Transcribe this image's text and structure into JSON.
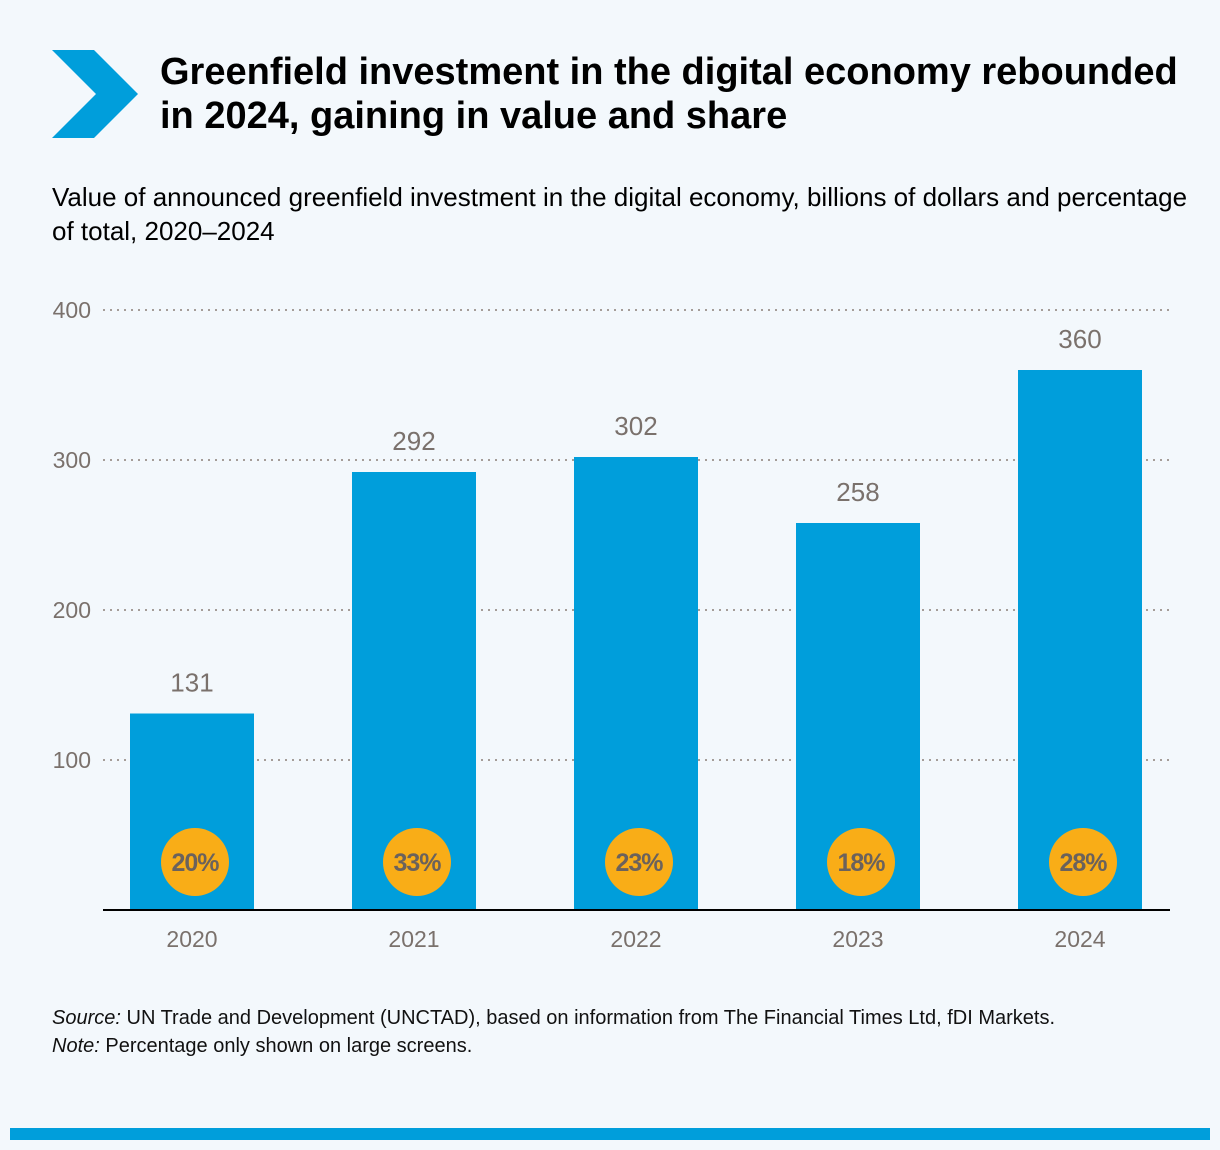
{
  "header": {
    "title": "Greenfield investment in the digital economy rebounded in 2024, gaining in value and share",
    "subtitle": "Value of announced greenfield investment in the digital economy, billions of dollars and percentage of total, 2020–2024",
    "icon": "chevron-right-icon"
  },
  "colors": {
    "bar": "#009edb",
    "badge": "#f9ad17",
    "accent": "#009edb",
    "background": "#f3f8fc"
  },
  "chart_data": {
    "type": "bar",
    "title": "Value of announced greenfield investment in the digital economy, billions of dollars and percentage of total, 2020–2024",
    "xlabel": "",
    "ylabel": "",
    "categories": [
      "2020",
      "2021",
      "2022",
      "2023",
      "2024"
    ],
    "values": [
      131,
      292,
      302,
      258,
      360
    ],
    "value_labels": [
      "131",
      "292",
      "302",
      "258",
      "360"
    ],
    "share_labels": [
      "20%",
      "33%",
      "23%",
      "18%",
      "28%"
    ],
    "shares_percent": [
      20,
      33,
      23,
      18,
      28
    ],
    "series": [
      {
        "name": "Value (billions of dollars)",
        "values": [
          131,
          292,
          302,
          258,
          360
        ]
      },
      {
        "name": "Percentage of total",
        "values": [
          20,
          33,
          23,
          18,
          28
        ]
      }
    ],
    "ylim": [
      0,
      400
    ],
    "yticks": [
      100,
      200,
      300,
      400
    ],
    "ytick_labels": [
      "100",
      "200",
      "300",
      "400"
    ],
    "grid": true,
    "legend": "none"
  },
  "footer": {
    "source_label": "Source:",
    "source_text": " UN Trade and Development (UNCTAD), based on information from The Financial Times Ltd, fDI Markets.",
    "note_label": "Note:",
    "note_text": " Percentage only shown on large screens."
  }
}
